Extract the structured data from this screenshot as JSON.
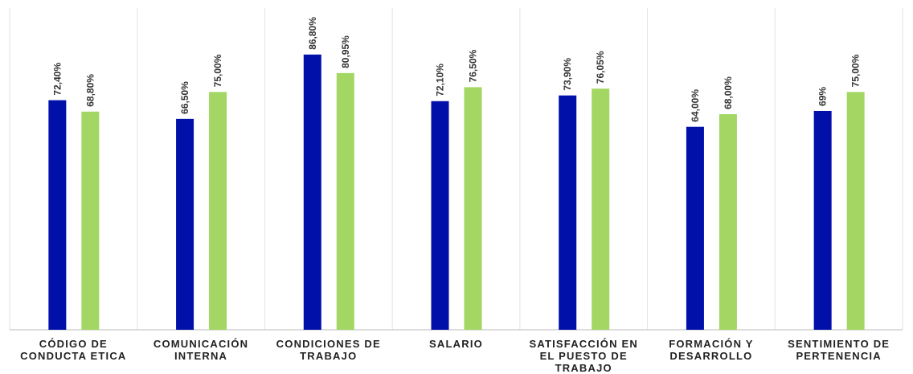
{
  "chart_data": {
    "type": "bar",
    "categories": [
      "CÓDIGO DE CONDUCTA ETICA",
      "COMUNICACIÓN INTERNA",
      "CONDICIONES DE TRABAJO",
      "SALARIO",
      "SATISFACCIÓN EN EL PUESTO DE TRABAJO",
      "FORMACIÓN Y DESARROLLO",
      "SENTIMIENTO DE PERTENENCIA"
    ],
    "series": [
      {
        "color": "#0010a8",
        "values": [
          72.4,
          66.5,
          86.8,
          72.1,
          73.9,
          64,
          69
        ],
        "value_labels": [
          "72,40%",
          "66,50%",
          "86,80%",
          "72,10%",
          "73,90%",
          "64,00%",
          "69%"
        ]
      },
      {
        "color": "#a3d662",
        "values": [
          68.8,
          75,
          80.95,
          76.5,
          76.05,
          68,
          75
        ],
        "value_labels": [
          "68,80%",
          "75,00%",
          "80,95%",
          "76,50%",
          "76,05%",
          "68,00%",
          "75,00%"
        ]
      }
    ],
    "ylim": [
      0,
      104
    ]
  }
}
